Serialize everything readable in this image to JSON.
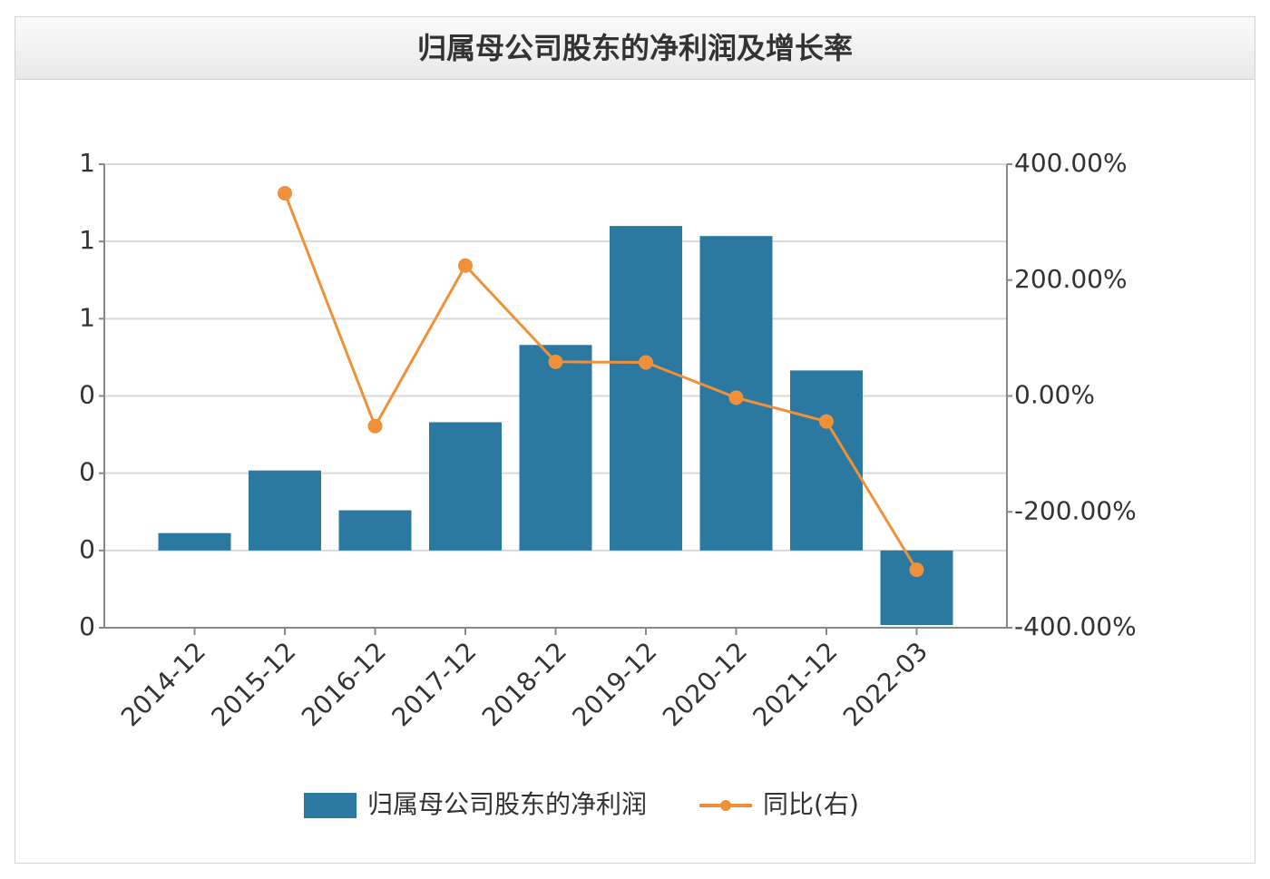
{
  "chart_data": {
    "type": "bar-line",
    "title": "归属母公司股东的净利润及增长率",
    "categories": [
      "2014-12",
      "2015-12",
      "2016-12",
      "2017-12",
      "2018-12",
      "2019-12",
      "2020-12",
      "2021-12",
      "2022-03"
    ],
    "series": [
      {
        "name": "归属母公司股东的净利润",
        "type": "bar",
        "color": "#2b78a0",
        "values": [
          0.045,
          0.207,
          0.104,
          0.332,
          0.532,
          0.84,
          0.814,
          0.466,
          -0.193
        ]
      },
      {
        "name": "同比(右)",
        "type": "line",
        "axis": "y2",
        "color": "#f0913a",
        "values": [
          null,
          350,
          -52,
          225,
          59,
          58,
          -3,
          -44,
          -300
        ]
      }
    ],
    "ylim": [
      -0.2,
      1.0
    ],
    "yticks": [
      {
        "value": -0.2,
        "label": "0"
      },
      {
        "value": 0,
        "label": "0"
      },
      {
        "value": 0.2,
        "label": "0"
      },
      {
        "value": 0.4,
        "label": "0"
      },
      {
        "value": 0.6,
        "label": "1"
      },
      {
        "value": 0.8,
        "label": "1"
      },
      {
        "value": 1.0,
        "label": "1"
      }
    ],
    "y2lim": [
      -400,
      400
    ],
    "y2ticks": [
      {
        "value": -400,
        "label": "-400.00%"
      },
      {
        "value": -200,
        "label": "-200.00%"
      },
      {
        "value": 0,
        "label": "0.00%"
      },
      {
        "value": 200,
        "label": "200.00%"
      },
      {
        "value": 400,
        "label": "400.00%"
      }
    ],
    "grid": true
  }
}
